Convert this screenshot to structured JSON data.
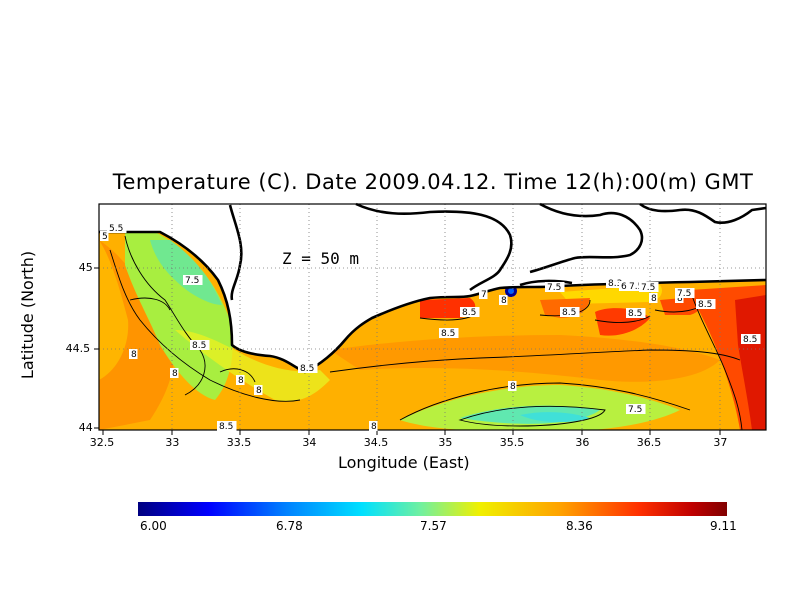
{
  "title": "Temperature (C). Date 2009.04.12. Time 12(h):00(m) GMT",
  "depth_label": "Z  =  50  m",
  "colorbar": {
    "ticks": [
      "6.00",
      "6.78",
      "7.57",
      "8.36",
      "9.11"
    ]
  },
  "chart_data": {
    "type": "heatmap",
    "title": "Temperature (C). Date 2009.04.12. Time 12(h):00(m) GMT",
    "xlabel": "Longitude (East)",
    "ylabel": "Latitude (North)",
    "xlim": [
      32.5,
      37.3
    ],
    "ylim": [
      44.0,
      45.35
    ],
    "x_ticks": [
      "32.5",
      "33",
      "33.5",
      "34",
      "34.5",
      "35",
      "35.5",
      "36",
      "36.5",
      "37"
    ],
    "y_ticks": [
      "44",
      "44.5",
      "45"
    ],
    "grid": true,
    "colorbar_range": [
      6.0,
      9.11
    ],
    "contour_labels": [
      "5.5",
      "5",
      "7.5",
      "8",
      "8.5",
      "8",
      "8",
      "8",
      "8.5",
      "8.5",
      "8",
      "8.5",
      "8",
      "7",
      "8",
      "7.5",
      "8.3",
      "6",
      "7.5",
      "7.5",
      "8",
      "8.5",
      "8.5",
      "8.5",
      "8.5",
      "8.5",
      "8",
      "7.5",
      "7.5"
    ]
  }
}
